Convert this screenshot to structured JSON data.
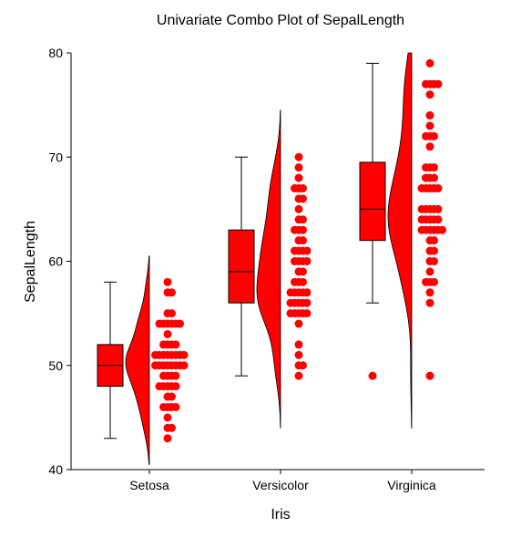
{
  "chart_data": {
    "type": "box",
    "title": "Univariate Combo Plot of SepalLength",
    "xlabel": "Iris",
    "ylabel": "SepalLength",
    "ylim": [
      40,
      80
    ],
    "yticks": [
      40,
      50,
      60,
      70,
      80
    ],
    "grid": false,
    "categories": [
      "Setosa",
      "Versicolor",
      "Virginica"
    ],
    "color": "#ff0000",
    "groups": [
      {
        "name": "Setosa",
        "box": {
          "whisker_low": 43,
          "q1": 48,
          "median": 50,
          "q3": 52,
          "whisker_high": 58
        },
        "outliers": [],
        "density_range": [
          40.5,
          60.5
        ],
        "density_peak": 50,
        "points": [
          43,
          44,
          44,
          45,
          46,
          46,
          46,
          46,
          47,
          47,
          48,
          48,
          48,
          48,
          48,
          49,
          49,
          49,
          49,
          50,
          50,
          50,
          50,
          50,
          50,
          50,
          50,
          51,
          51,
          51,
          51,
          51,
          51,
          51,
          51,
          52,
          52,
          52,
          52,
          53,
          54,
          54,
          54,
          54,
          54,
          54,
          55,
          55,
          57,
          57,
          58
        ]
      },
      {
        "name": "Versicolor",
        "box": {
          "whisker_low": 49,
          "q1": 56,
          "median": 59,
          "q3": 63,
          "whisker_high": 70
        },
        "outliers": [],
        "density_range": [
          44,
          74.5
        ],
        "density_peak": 57.5,
        "points": [
          49,
          50,
          50,
          51,
          52,
          54,
          55,
          55,
          55,
          55,
          55,
          56,
          56,
          56,
          56,
          56,
          57,
          57,
          57,
          57,
          57,
          58,
          58,
          58,
          59,
          59,
          60,
          60,
          60,
          60,
          61,
          61,
          61,
          61,
          62,
          62,
          63,
          63,
          63,
          64,
          64,
          65,
          66,
          66,
          67,
          67,
          67,
          68,
          69,
          70
        ]
      },
      {
        "name": "Virginica",
        "box": {
          "whisker_low": 56,
          "q1": 62,
          "median": 65,
          "q3": 69.5,
          "whisker_high": 79
        },
        "outliers": [
          49
        ],
        "density_range": [
          44,
          80
        ],
        "density_peak": 64.5,
        "points": [
          49,
          56,
          57,
          58,
          58,
          58,
          59,
          60,
          60,
          61,
          61,
          62,
          62,
          63,
          63,
          63,
          63,
          63,
          63,
          64,
          64,
          64,
          64,
          64,
          65,
          65,
          65,
          65,
          65,
          67,
          67,
          67,
          67,
          67,
          68,
          68,
          68,
          69,
          69,
          69,
          71,
          72,
          72,
          72,
          73,
          74,
          76,
          77,
          77,
          77,
          77,
          79
        ]
      }
    ]
  }
}
